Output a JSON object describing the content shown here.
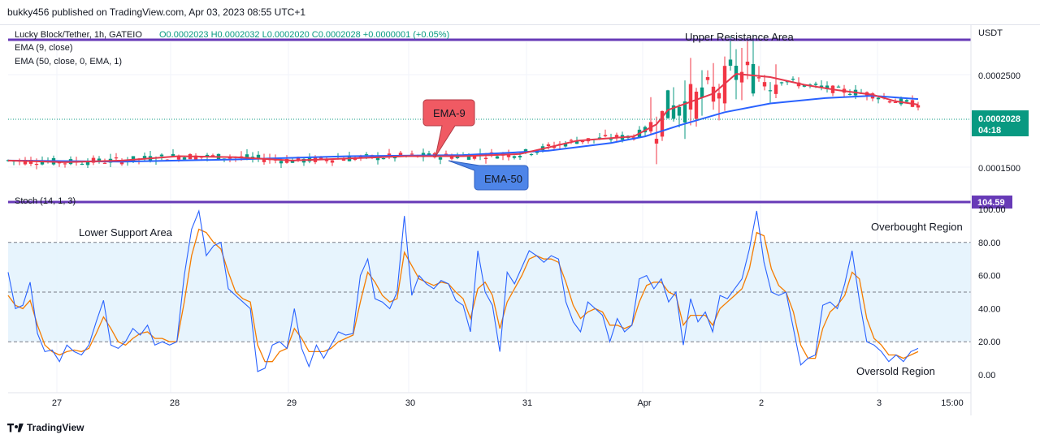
{
  "header": {
    "publisher": "bukky456 published on TradingView.com, Apr 03, 2023 08:55 UTC+1"
  },
  "legend": {
    "symbol": "Lucky Block/Tether, 1h, GATEIO",
    "ohlc": "O0.0002023  H0.0002032  L0.0002020  C0.0002028  +0.0000001 (+0.05%)",
    "ema9": "EMA (9, close)",
    "ema50": "EMA (50, close, 0, EMA, 1)",
    "stoch": "Stoch (14, 1, 3)"
  },
  "price_axis": {
    "currency": "USDT",
    "ticks": [
      "0.0002500",
      "0.0001500"
    ],
    "last_price": "0.0002028",
    "countdown": "04:18",
    "stoch_value": "104.59"
  },
  "stoch_axis": {
    "ticks": [
      "100.00",
      "80.00",
      "60.00",
      "40.00",
      "20.00",
      "0.00"
    ]
  },
  "time_axis": {
    "labels": [
      "27",
      "28",
      "29",
      "30",
      "31",
      "Apr",
      "2",
      "3",
      "15:00"
    ]
  },
  "annotations": {
    "upper_resistance": "Upper Resistance Area",
    "lower_support": "Lower Support Area",
    "overbought": "Overbought Region",
    "oversold": "Oversold Region",
    "ema9_callout": "EMA-9",
    "ema50_callout": "EMA-50"
  },
  "footer": {
    "brand": "TradingView"
  },
  "colors": {
    "up": "#089981",
    "down": "#f23645",
    "ema9": "#e5384c",
    "ema50": "#2962ff",
    "resistance": "#673ab7",
    "stoch_k": "#2962ff",
    "stoch_d": "#f57c00",
    "band": "#e3f2fd",
    "ema9_callout_bg": "#f05a63",
    "ema50_callout_bg": "#4e85e8"
  },
  "chart_data": [
    {
      "type": "candlestick",
      "title": "Lucky Block/Tether, 1h, GATEIO",
      "ylabel": "USDT",
      "ylim": [
        0.00013,
        0.00027
      ],
      "resistance_level": 0.000266,
      "ema9": [
        [
          0,
          0.000156
        ],
        [
          10,
          0.0001545
        ],
        [
          20,
          0.000156
        ],
        [
          30,
          0.00016
        ],
        [
          40,
          0.000159
        ],
        [
          50,
          0.000156
        ],
        [
          60,
          0.000158
        ],
        [
          70,
          0.00016
        ],
        [
          80,
          0.00016
        ],
        [
          90,
          0.000162
        ],
        [
          100,
          0.000174
        ],
        [
          110,
          0.000178
        ],
        [
          114,
          0.000189
        ],
        [
          116,
          0.000202
        ],
        [
          124,
          0.000217
        ],
        [
          128,
          0.000235
        ],
        [
          134,
          0.000232
        ],
        [
          140,
          0.000225
        ],
        [
          146,
          0.00022
        ],
        [
          152,
          0.000216
        ],
        [
          156,
          0.00021
        ],
        [
          160,
          0.000207
        ]
      ],
      "ema50": [
        [
          0,
          0.000156
        ],
        [
          20,
          0.000155
        ],
        [
          40,
          0.000157
        ],
        [
          60,
          0.00016
        ],
        [
          80,
          0.000161
        ],
        [
          95,
          0.000165
        ],
        [
          106,
          0.000172
        ],
        [
          112,
          0.000178
        ],
        [
          118,
          0.000188
        ],
        [
          126,
          0.0002
        ],
        [
          134,
          0.000208
        ],
        [
          144,
          0.000213
        ],
        [
          152,
          0.000215
        ],
        [
          160,
          0.000212
        ]
      ],
      "last_price": 0.0002028
    },
    {
      "type": "line",
      "title": "Stoch (14, 1, 3)",
      "ylim": [
        -5,
        105
      ],
      "hlines": [
        80,
        50,
        20
      ],
      "series": [
        {
          "values": [
            62,
            40,
            42,
            56,
            25,
            14,
            15,
            8,
            18,
            14,
            12,
            18,
            32,
            45,
            18,
            16,
            20,
            28,
            24,
            30,
            18,
            20,
            18,
            20,
            60,
            88,
            99,
            72,
            78,
            80,
            52,
            48,
            44,
            40,
            2,
            4,
            18,
            20,
            16,
            40,
            16,
            5,
            18,
            10,
            18,
            26,
            24,
            25,
            60,
            70,
            46,
            44,
            40,
            50,
            96,
            48,
            60,
            55,
            52,
            57,
            55,
            45,
            42,
            26,
            75,
            50,
            42,
            14,
            62,
            55,
            65,
            75,
            72,
            68,
            72,
            70,
            44,
            32,
            26,
            44,
            40,
            36,
            20,
            34,
            26,
            30,
            58,
            60,
            52,
            58,
            44,
            50,
            18,
            46,
            32,
            38,
            26,
            48,
            46,
            52,
            58,
            76,
            99,
            68,
            50,
            48,
            50,
            28,
            6,
            10,
            12,
            42,
            44,
            40,
            55,
            75,
            45,
            20,
            18,
            14,
            8,
            12,
            8,
            14,
            16
          ]
        },
        {
          "values": [
            48,
            42,
            40,
            45,
            30,
            18,
            14,
            12,
            14,
            15,
            14,
            16,
            25,
            35,
            28,
            20,
            18,
            22,
            25,
            26,
            22,
            22,
            20,
            20,
            44,
            72,
            88,
            86,
            80,
            76,
            62,
            50,
            46,
            44,
            18,
            8,
            8,
            14,
            16,
            28,
            22,
            14,
            14,
            14,
            16,
            20,
            22,
            24,
            44,
            62,
            56,
            48,
            44,
            46,
            74,
            66,
            58,
            56,
            54,
            56,
            55,
            50,
            46,
            34,
            52,
            56,
            48,
            28,
            44,
            52,
            60,
            70,
            72,
            70,
            70,
            68,
            56,
            42,
            34,
            38,
            40,
            38,
            30,
            30,
            28,
            30,
            44,
            54,
            56,
            56,
            50,
            48,
            30,
            36,
            36,
            36,
            30,
            40,
            44,
            48,
            52,
            64,
            86,
            84,
            64,
            54,
            50,
            38,
            18,
            10,
            10,
            28,
            38,
            42,
            48,
            62,
            58,
            34,
            22,
            18,
            12,
            12,
            10,
            12,
            14
          ]
        }
      ]
    }
  ]
}
